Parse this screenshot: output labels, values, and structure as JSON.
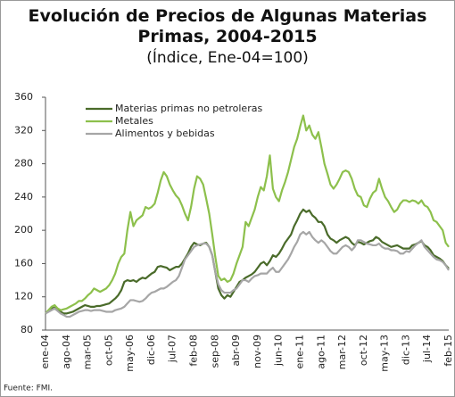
{
  "chart_data": {
    "type": "line",
    "title": "Evolución de Precios de Algunas Materias Primas, 2004-2015",
    "subtitle": "(Índice, Ene-04=100)",
    "source": "Fuente: FMI.",
    "categories": [
      "ene-04",
      null,
      null,
      null,
      null,
      null,
      null,
      "ago-04",
      null,
      null,
      null,
      null,
      null,
      null,
      "mar-05",
      null,
      null,
      null,
      null,
      null,
      null,
      "oct-05",
      null,
      null,
      null,
      null,
      null,
      null,
      "may-06",
      null,
      null,
      null,
      null,
      null,
      null,
      "dic-06",
      null,
      null,
      null,
      null,
      null,
      null,
      "jul-07",
      null,
      null,
      null,
      null,
      null,
      null,
      "feb-08",
      null,
      null,
      null,
      null,
      null,
      null,
      "sep-08",
      null,
      null,
      null,
      null,
      null,
      null,
      "abr-09",
      null,
      null,
      null,
      null,
      null,
      null,
      "nov-09",
      null,
      null,
      null,
      null,
      null,
      null,
      "jun-10",
      null,
      null,
      null,
      null,
      null,
      null,
      "ene-11",
      null,
      null,
      null,
      null,
      null,
      null,
      "ago-11",
      null,
      null,
      null,
      null,
      null,
      null,
      "mar-12",
      null,
      null,
      null,
      null,
      null,
      null,
      "oct-12",
      null,
      null,
      null,
      null,
      null,
      null,
      "may-13",
      null,
      null,
      null,
      null,
      null,
      null,
      "dic-13",
      null,
      null,
      null,
      null,
      null,
      null,
      "jul-14",
      null,
      null,
      null,
      null,
      null,
      null,
      "feb-15"
    ],
    "series": [
      {
        "name": "Materias primas no petroleras",
        "color": "#4a6b2a",
        "values": [
          100,
          103,
          106,
          107,
          104,
          102,
          100,
          100,
          101,
          102,
          104,
          106,
          108,
          110,
          109,
          108,
          108,
          109,
          109,
          110,
          111,
          112,
          115,
          118,
          122,
          128,
          138,
          140,
          139,
          140,
          138,
          141,
          143,
          142,
          145,
          148,
          150,
          156,
          157,
          156,
          155,
          152,
          154,
          156,
          156,
          160,
          166,
          172,
          180,
          185,
          183,
          182,
          184,
          185,
          180,
          170,
          150,
          130,
          122,
          118,
          122,
          120,
          126,
          132,
          138,
          140,
          143,
          145,
          147,
          150,
          155,
          160,
          162,
          158,
          163,
          170,
          168,
          172,
          178,
          185,
          190,
          195,
          205,
          212,
          220,
          225,
          222,
          224,
          218,
          215,
          210,
          210,
          205,
          195,
          190,
          188,
          185,
          188,
          190,
          192,
          190,
          185,
          182,
          186,
          185,
          183,
          185,
          187,
          188,
          192,
          190,
          186,
          184,
          182,
          180,
          181,
          182,
          180,
          178,
          178,
          178,
          182,
          183,
          185,
          187,
          182,
          180,
          176,
          170,
          168,
          166,
          163,
          158,
          154
        ]
      },
      {
        "name": "Metales",
        "color": "#8dc04c",
        "values": [
          100,
          104,
          108,
          110,
          106,
          104,
          105,
          106,
          108,
          110,
          112,
          115,
          115,
          118,
          122,
          125,
          130,
          128,
          126,
          128,
          130,
          134,
          140,
          148,
          160,
          168,
          172,
          200,
          222,
          205,
          212,
          215,
          218,
          228,
          226,
          228,
          232,
          245,
          260,
          270,
          265,
          255,
          248,
          242,
          238,
          230,
          220,
          212,
          228,
          250,
          265,
          262,
          255,
          238,
          220,
          195,
          168,
          145,
          140,
          142,
          138,
          140,
          148,
          160,
          170,
          180,
          210,
          205,
          215,
          225,
          240,
          252,
          248,
          265,
          290,
          250,
          240,
          235,
          248,
          258,
          270,
          285,
          300,
          310,
          325,
          338,
          320,
          326,
          315,
          310,
          318,
          300,
          280,
          268,
          255,
          250,
          255,
          262,
          270,
          272,
          270,
          262,
          250,
          242,
          240,
          230,
          228,
          238,
          245,
          248,
          262,
          250,
          240,
          235,
          228,
          222,
          225,
          232,
          236,
          236,
          234,
          236,
          235,
          232,
          236,
          230,
          228,
          222,
          212,
          210,
          205,
          200,
          185,
          180
        ]
      },
      {
        "name": "Alimentos y bebidas",
        "color": "#a6a6a6",
        "values": [
          100,
          102,
          104,
          106,
          103,
          100,
          98,
          96,
          96,
          98,
          100,
          102,
          103,
          104,
          104,
          103,
          104,
          104,
          104,
          103,
          102,
          102,
          102,
          104,
          105,
          106,
          108,
          112,
          116,
          116,
          115,
          114,
          115,
          118,
          122,
          125,
          126,
          128,
          130,
          130,
          132,
          135,
          138,
          140,
          145,
          155,
          165,
          170,
          175,
          180,
          182,
          183,
          184,
          184,
          180,
          170,
          150,
          135,
          128,
          125,
          125,
          125,
          128,
          130,
          135,
          140,
          140,
          138,
          142,
          145,
          146,
          148,
          148,
          148,
          152,
          155,
          150,
          150,
          155,
          160,
          165,
          172,
          180,
          186,
          195,
          198,
          195,
          198,
          192,
          188,
          185,
          188,
          185,
          180,
          175,
          172,
          172,
          176,
          180,
          182,
          180,
          176,
          180,
          188,
          188,
          186,
          184,
          183,
          182,
          182,
          184,
          180,
          178,
          178,
          176,
          176,
          175,
          172,
          172,
          175,
          174,
          178,
          182,
          185,
          188,
          180,
          176,
          172,
          168,
          165,
          164,
          162,
          158,
          152
        ]
      }
    ],
    "ylim": [
      80,
      360
    ],
    "yticks": [
      80,
      120,
      160,
      200,
      240,
      280,
      320,
      360
    ],
    "grid": false,
    "legend": "upper left"
  }
}
